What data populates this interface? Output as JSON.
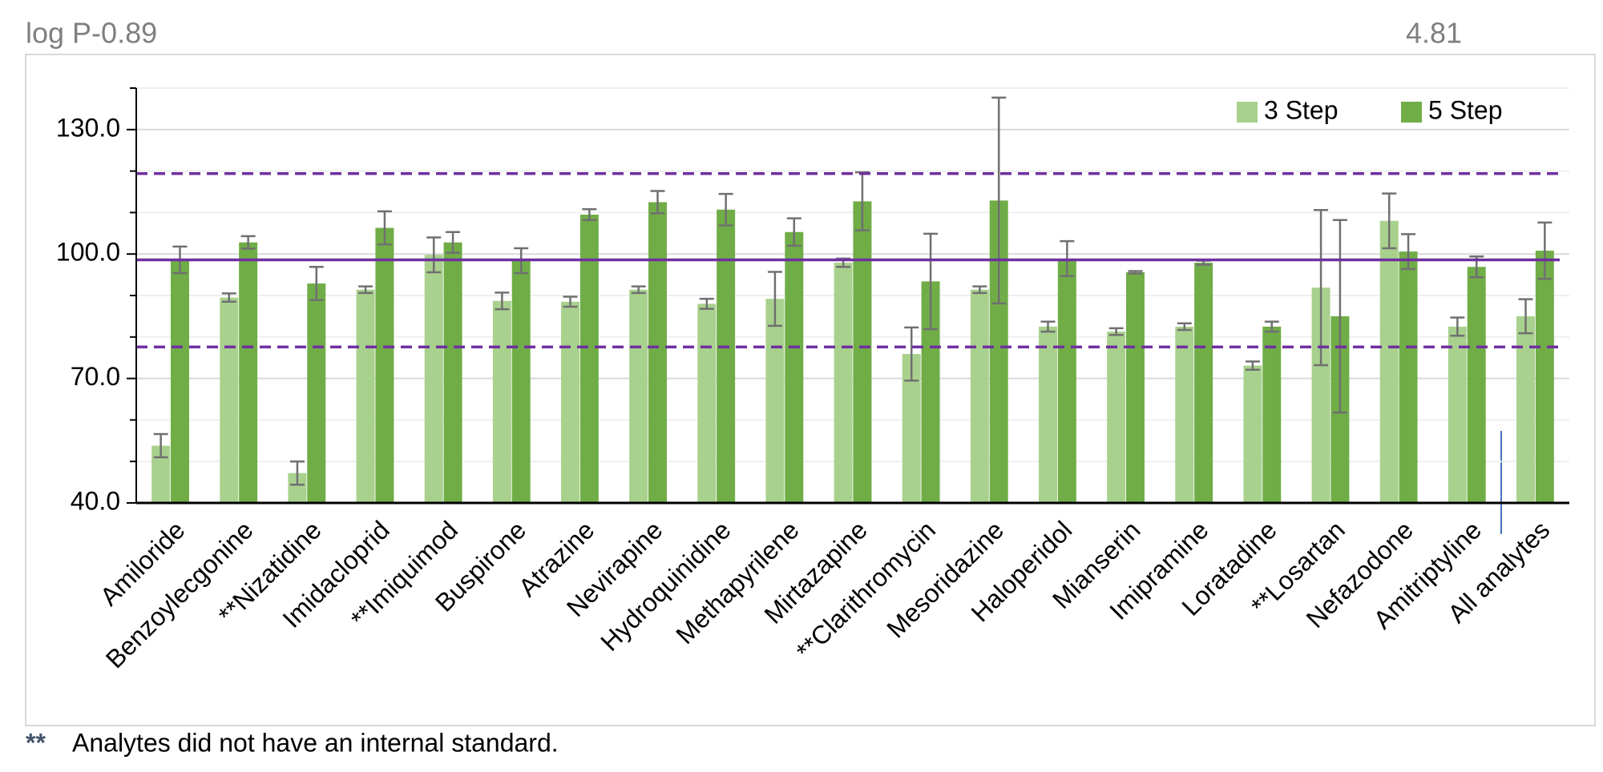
{
  "chart_data": {
    "type": "bar",
    "annotations": [
      "log P-0.89",
      "4.81"
    ],
    "footnote": {
      "marker": "**",
      "text": "Analytes did not have an internal standard."
    },
    "categories": [
      "Amiloride",
      "Benzoylecgonine",
      "**Nizatidine",
      "Imidacloprid",
      "**Imiquimod",
      "Buspirone",
      "Atrazine",
      "Nevirapine",
      "Hydroquinidine",
      "Methapyrilene",
      "Mirtazapine",
      "**Clarithromycin",
      "Mesoridazine",
      "Haloperidol",
      "Mianserin",
      "Imipramine",
      "Loratadine",
      "**Losartan",
      "Nefazodone",
      "Amitriptyline",
      "All analytes"
    ],
    "series": [
      {
        "name": "3 Step",
        "color": "#a9d18e",
        "values": [
          53.8,
          89.5,
          47.2,
          91.4,
          99.8,
          88.7,
          88.5,
          91.4,
          88.0,
          89.2,
          97.9,
          75.9,
          91.4,
          82.5,
          81.3,
          82.5,
          73.1,
          91.9,
          108.0,
          82.5,
          85.0
        ],
        "errors": [
          2.8,
          1.0,
          2.8,
          0.8,
          4.2,
          2.0,
          1.2,
          0.8,
          1.2,
          6.5,
          1.0,
          6.4,
          0.8,
          1.2,
          0.8,
          0.8,
          1.0,
          18.7,
          6.6,
          2.2,
          4.1
        ]
      },
      {
        "name": "5 Step",
        "color": "#70ad47",
        "values": [
          98.6,
          102.8,
          92.9,
          106.3,
          102.8,
          98.4,
          109.5,
          112.5,
          110.7,
          105.3,
          112.7,
          93.4,
          112.9,
          98.9,
          95.6,
          97.9,
          82.5,
          85.0,
          100.6,
          96.9,
          100.8
        ],
        "errors": [
          3.2,
          1.5,
          4.0,
          4.0,
          2.5,
          3.0,
          1.3,
          2.7,
          3.8,
          3.3,
          7.0,
          11.5,
          24.8,
          4.2,
          0.3,
          0.5,
          1.2,
          23.2,
          4.2,
          2.5,
          6.8
        ]
      }
    ],
    "error_color": "#707070",
    "reference_lines": [
      {
        "value": 98.6,
        "style": "solid"
      },
      {
        "value": 119.4,
        "style": "dashed"
      },
      {
        "value": 77.6,
        "style": "dashed"
      }
    ],
    "reference_color": "#7030a0",
    "ylim": [
      40,
      140
    ],
    "yticks": [
      {
        "value": 40,
        "label": "40.0"
      },
      {
        "value": 70,
        "label": "70.0"
      },
      {
        "value": 100,
        "label": "100.0"
      },
      {
        "value": 130,
        "label": "130.0"
      }
    ],
    "minor_yticks": [
      50,
      60,
      80,
      90,
      110,
      120,
      140
    ],
    "grid": true,
    "legend": "upper right"
  }
}
